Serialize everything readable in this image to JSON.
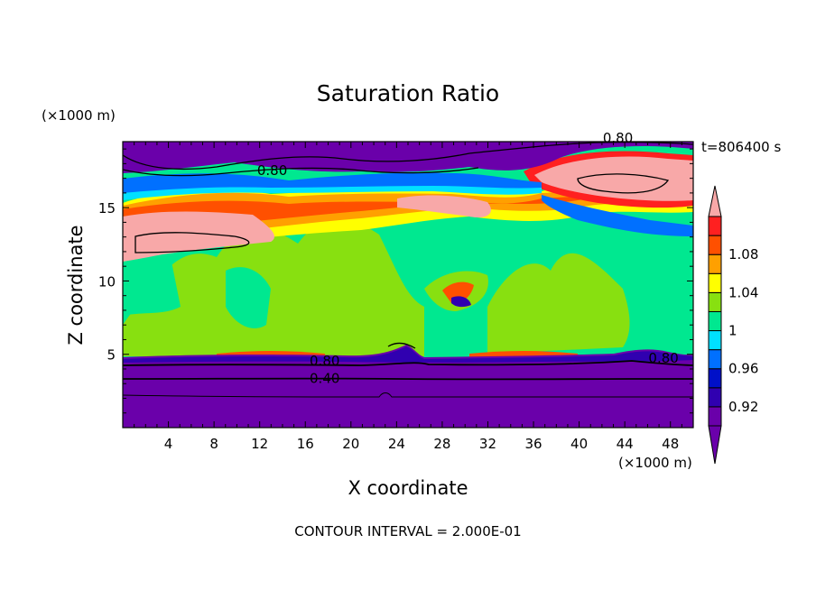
{
  "chart_data": {
    "type": "heatmap",
    "title": "Saturation Ratio",
    "xlabel": "X coordinate",
    "ylabel": "Z coordinate",
    "x_unit": "(×1000 m)",
    "y_unit": "(×1000 m)",
    "time_label": "t=806400 s",
    "footer": "CONTOUR INTERVAL = 2.000E-01",
    "xlim": [
      0,
      50
    ],
    "ylim": [
      0,
      19.5
    ],
    "x_ticks": [
      4,
      8,
      12,
      16,
      20,
      24,
      28,
      32,
      36,
      40,
      44,
      48
    ],
    "y_ticks": [
      5,
      10,
      15
    ],
    "colorbar": {
      "levels": [
        0.92,
        0.94,
        0.96,
        0.98,
        1,
        1.02,
        1.04,
        1.06,
        1.08,
        1.1
      ],
      "labels": [
        "0.92",
        "0.96",
        "1",
        "1.04",
        "1.08"
      ],
      "label_values": [
        0.92,
        0.96,
        1,
        1.04,
        1.08
      ],
      "colors": [
        "#6a00aa",
        "#3000b0",
        "#0010c8",
        "#0070ff",
        "#00e0ff",
        "#00e890",
        "#88e010",
        "#ffff00",
        "#ffa000",
        "#ff5000",
        "#ff2020",
        "#f8a8a8"
      ]
    },
    "contour_labels": [
      {
        "text": "0.80",
        "x": 13.1,
        "z": 17.6
      },
      {
        "text": "0.80",
        "x": 43.4,
        "z": 19.8
      },
      {
        "text": "0.80",
        "x": 17.7,
        "z": 4.6
      },
      {
        "text": "0.40",
        "x": 17.7,
        "z": 3.4
      },
      {
        "text": "0.80",
        "x": 47.4,
        "z": 4.8
      }
    ]
  }
}
